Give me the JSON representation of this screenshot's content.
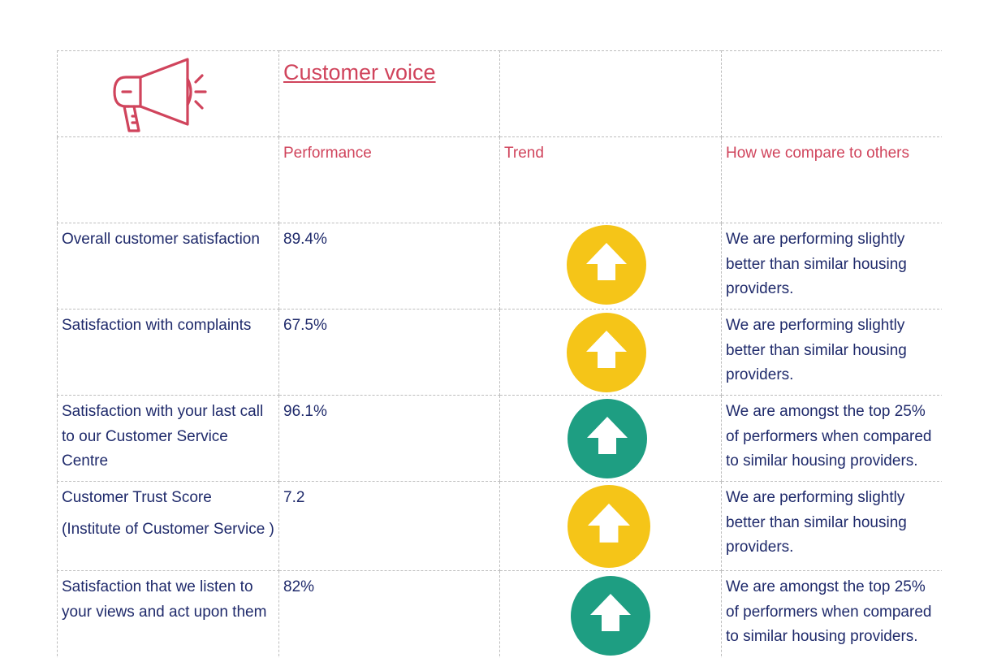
{
  "page": {
    "title": "Customer voice",
    "icon": "megaphone-icon",
    "accent_color": "#d0445c",
    "text_color": "#1f2a6b"
  },
  "columns": {
    "performance": "Performance",
    "trend": "Trend",
    "compare": "How we compare to others"
  },
  "rows": [
    {
      "measure": "Overall customer satisfaction",
      "performance": "89.4%",
      "trend": "up",
      "trend_color": "#f5c518",
      "trend_icon": "arrow-up-icon",
      "compare": "We are performing slightly better than similar housing providers."
    },
    {
      "measure": "Satisfaction with complaints",
      "performance": "67.5%",
      "trend": "up",
      "trend_color": "#f5c518",
      "trend_icon": "arrow-up-icon",
      "compare": "We are performing slightly better than similar housing providers."
    },
    {
      "measure": "Satisfaction with your last call to our Customer Service Centre",
      "performance": "96.1%",
      "trend": "up",
      "trend_color": "#1e9e82",
      "trend_icon": "arrow-up-icon",
      "compare": "We are amongst the top 25% of performers when compared to similar housing providers."
    },
    {
      "measure": "Customer Trust Score",
      "measure_note": "(Institute of Customer Service )",
      "performance": "7.2",
      "trend": "up",
      "trend_color": "#f5c518",
      "trend_icon": "arrow-up-icon",
      "compare": "We are performing slightly better than similar housing providers."
    },
    {
      "measure": "Satisfaction that we listen to your views and act upon them",
      "performance": "82%",
      "trend": "up",
      "trend_color": "#1e9e82",
      "trend_icon": "arrow-up-icon",
      "compare": "We are amongst the top 25% of performers when compared to similar housing providers."
    }
  ]
}
